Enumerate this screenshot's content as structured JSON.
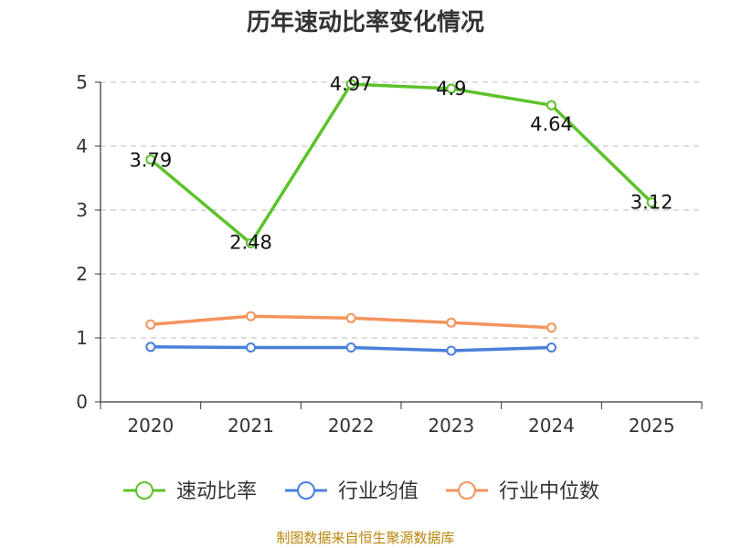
{
  "chart_data": {
    "type": "line",
    "title": "历年速动比率变化情况",
    "x": [
      "2020",
      "2021",
      "2022",
      "2023",
      "2024",
      "2025"
    ],
    "ylim": [
      0,
      5
    ],
    "yticks": [
      0,
      1,
      2,
      3,
      4,
      5
    ],
    "grid": true,
    "legend_position": "bottom",
    "series": [
      {
        "name": "速动比率",
        "color": "#5cc22a",
        "values": [
          3.79,
          2.48,
          4.97,
          4.9,
          4.64,
          3.12
        ],
        "show_labels": true
      },
      {
        "name": "行业均值",
        "color": "#4a7fdc",
        "values": [
          0.86,
          0.85,
          0.85,
          0.8,
          0.85,
          null
        ],
        "show_labels": false
      },
      {
        "name": "行业中位数",
        "color": "#f4935e",
        "values": [
          1.21,
          1.34,
          1.31,
          1.24,
          1.16,
          null
        ],
        "show_labels": false
      }
    ],
    "source": "制图数据来自恒生聚源数据库"
  }
}
